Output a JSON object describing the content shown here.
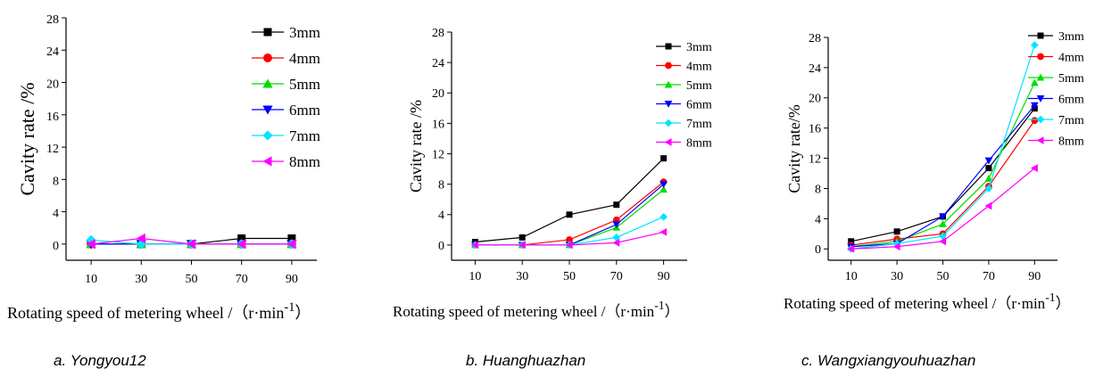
{
  "chart_data": [
    {
      "type": "line",
      "caption": "a. Yongyou12",
      "xlabel": "Rotating speed of metering wheel /（r·min",
      "xlabel_sup": "-1",
      "xlabel_end": "）",
      "ylabel": "Cavity rate  /%",
      "x": [
        10,
        30,
        50,
        70,
        90
      ],
      "ylim": [
        -2,
        28
      ],
      "yticks": [
        0,
        4,
        8,
        12,
        16,
        20,
        24,
        28
      ],
      "series": [
        {
          "name": "3mm",
          "color": "#000000",
          "marker": "square",
          "values": [
            0,
            0,
            0,
            0.7,
            0.7
          ]
        },
        {
          "name": "4mm",
          "color": "#ff0000",
          "marker": "circle",
          "values": [
            0,
            0,
            0,
            0,
            0
          ]
        },
        {
          "name": "5mm",
          "color": "#00dd00",
          "marker": "triangle-up",
          "values": [
            0,
            0,
            0,
            0,
            0
          ]
        },
        {
          "name": "6mm",
          "color": "#0000ff",
          "marker": "triangle-down",
          "values": [
            0,
            0,
            0,
            0,
            0
          ]
        },
        {
          "name": "7mm",
          "color": "#00e5ff",
          "marker": "diamond",
          "values": [
            0.5,
            0,
            0,
            0,
            0
          ]
        },
        {
          "name": "8mm",
          "color": "#ff00ff",
          "marker": "triangle-left",
          "values": [
            0,
            0.7,
            0,
            0,
            0
          ]
        }
      ]
    },
    {
      "type": "line",
      "caption": "b. Huanghuazhan",
      "xlabel": "Rotating speed of metering wheel /（r·min",
      "xlabel_sup": "-1",
      "xlabel_end": "）",
      "ylabel": "Cavity rate  /%",
      "x": [
        10,
        30,
        50,
        70,
        90
      ],
      "ylim": [
        -2,
        28
      ],
      "yticks": [
        0,
        4,
        8,
        12,
        16,
        20,
        24,
        28
      ],
      "series": [
        {
          "name": "3mm",
          "color": "#000000",
          "marker": "square",
          "values": [
            0.4,
            1.0,
            4.0,
            5.3,
            11.4
          ]
        },
        {
          "name": "4mm",
          "color": "#ff0000",
          "marker": "circle",
          "values": [
            0,
            0,
            0.7,
            3.3,
            8.3
          ]
        },
        {
          "name": "5mm",
          "color": "#00dd00",
          "marker": "triangle-up",
          "values": [
            0,
            0,
            0,
            2.3,
            7.3
          ]
        },
        {
          "name": "6mm",
          "color": "#0000ff",
          "marker": "triangle-down",
          "values": [
            0,
            0,
            0,
            2.7,
            8.0
          ]
        },
        {
          "name": "7mm",
          "color": "#00e5ff",
          "marker": "diamond",
          "values": [
            0,
            0,
            0,
            1.0,
            3.7
          ]
        },
        {
          "name": "8mm",
          "color": "#ff00ff",
          "marker": "triangle-left",
          "values": [
            0,
            0,
            0,
            0.3,
            1.7
          ]
        }
      ]
    },
    {
      "type": "line",
      "caption": "c. Wangxiangyouhuazhan",
      "xlabel": "Rotating speed of metering wheel /（r·min",
      "xlabel_sup": "-1",
      "xlabel_end": "）",
      "ylabel": "Cavity rate/%",
      "x": [
        10,
        30,
        50,
        70,
        90
      ],
      "ylim": [
        -1.5,
        28
      ],
      "yticks": [
        0,
        4,
        8,
        12,
        16,
        20,
        24,
        28
      ],
      "series": [
        {
          "name": "3mm",
          "color": "#000000",
          "marker": "square",
          "values": [
            1.0,
            2.3,
            4.3,
            10.7,
            18.6
          ]
        },
        {
          "name": "4mm",
          "color": "#ff0000",
          "marker": "circle",
          "values": [
            0.5,
            1.3,
            2.0,
            8.3,
            17.0
          ]
        },
        {
          "name": "5mm",
          "color": "#00dd00",
          "marker": "triangle-up",
          "values": [
            0.3,
            1.0,
            3.3,
            9.3,
            22.0
          ]
        },
        {
          "name": "6mm",
          "color": "#0000ff",
          "marker": "triangle-down",
          "values": [
            0.3,
            0.7,
            4.3,
            11.7,
            19.0
          ]
        },
        {
          "name": "7mm",
          "color": "#00e5ff",
          "marker": "diamond",
          "values": [
            0,
            0.7,
            1.7,
            8.0,
            27.0
          ]
        },
        {
          "name": "8mm",
          "color": "#ff00ff",
          "marker": "triangle-left",
          "values": [
            0,
            0.3,
            1.0,
            5.7,
            10.7
          ]
        }
      ]
    }
  ]
}
